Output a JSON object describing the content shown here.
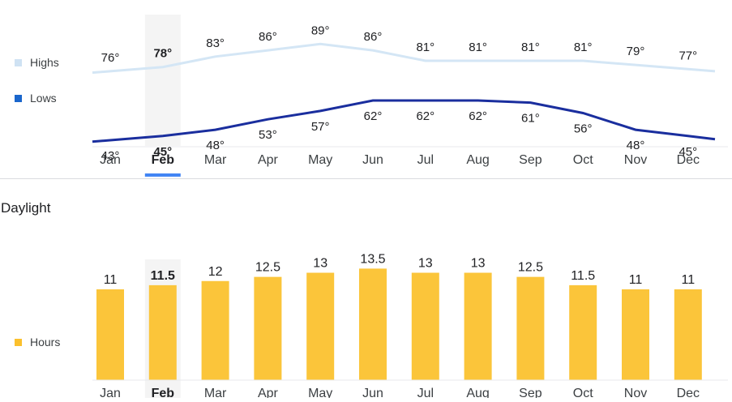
{
  "temperature": {
    "legend": [
      {
        "label": "Highs",
        "color": "#cfe2f3"
      },
      {
        "label": "Lows",
        "color": "#1a66cc"
      }
    ],
    "highlight_color": "#f4f4f4",
    "selected_indicator_color": "#4285f4"
  },
  "daylight": {
    "title": "Daylight",
    "legend": [
      {
        "label": "Hours",
        "color": "#fbc02d"
      }
    ]
  },
  "chart_data": [
    {
      "type": "line",
      "categories": [
        "Jan",
        "Feb",
        "Mar",
        "Apr",
        "May",
        "Jun",
        "Jul",
        "Aug",
        "Sep",
        "Oct",
        "Nov",
        "Dec"
      ],
      "selected": "Feb",
      "series": [
        {
          "name": "Highs",
          "values": [
            76,
            78,
            83,
            86,
            89,
            86,
            81,
            81,
            81,
            81,
            79,
            77
          ],
          "color": "#d4e6f5",
          "label_suffix": "°"
        },
        {
          "name": "Lows",
          "values": [
            43,
            45,
            48,
            53,
            57,
            62,
            62,
            62,
            61,
            56,
            48,
            45
          ],
          "color": "#1a2e9e",
          "label_suffix": "°"
        }
      ]
    },
    {
      "type": "bar",
      "categories": [
        "Jan",
        "Feb",
        "Mar",
        "Apr",
        "May",
        "Jun",
        "Jul",
        "Aug",
        "Sep",
        "Oct",
        "Nov",
        "Dec"
      ],
      "selected": "Feb",
      "series": [
        {
          "name": "Hours",
          "values": [
            11,
            11.5,
            12,
            12.5,
            13,
            13.5,
            13,
            13,
            12.5,
            11.5,
            11,
            11
          ],
          "color": "#fbc53a"
        }
      ]
    }
  ]
}
